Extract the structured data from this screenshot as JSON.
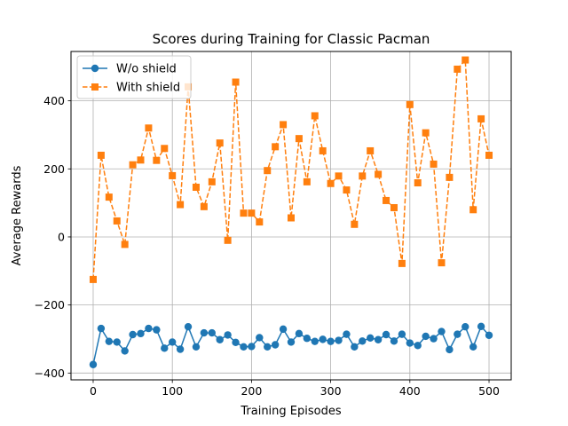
{
  "chart_data": {
    "type": "line",
    "title": "Scores during Training for Classic Pacman",
    "xlabel": "Training Episodes",
    "ylabel": "Average Rewards",
    "xlim": [
      -28,
      528
    ],
    "ylim": [
      -420,
      545
    ],
    "xticks": [
      0,
      100,
      200,
      300,
      400,
      500
    ],
    "yticks": [
      -400,
      -200,
      0,
      200,
      400
    ],
    "grid": true,
    "legend_position": "top-left",
    "x": [
      0,
      10,
      20,
      30,
      40,
      50,
      60,
      70,
      80,
      90,
      100,
      110,
      120,
      130,
      140,
      150,
      160,
      170,
      180,
      190,
      200,
      210,
      220,
      230,
      240,
      250,
      260,
      270,
      280,
      290,
      300,
      310,
      320,
      330,
      340,
      350,
      360,
      370,
      380,
      390,
      400,
      410,
      420,
      430,
      440,
      450,
      460,
      470,
      480,
      490,
      500
    ],
    "series": [
      {
        "name": "W/o shield",
        "color": "#1f77b4",
        "marker": "circle",
        "linestyle": "solid",
        "values": [
          -375,
          -269,
          -307,
          -309,
          -335,
          -287,
          -284,
          -269,
          -273,
          -327,
          -309,
          -330,
          -264,
          -323,
          -282,
          -282,
          -302,
          -288,
          -310,
          -323,
          -322,
          -296,
          -323,
          -317,
          -271,
          -309,
          -284,
          -298,
          -307,
          -301,
          -307,
          -304,
          -286,
          -323,
          -306,
          -297,
          -302,
          -287,
          -306,
          -286,
          -312,
          -319,
          -292,
          -299,
          -278,
          -331,
          -286,
          -264,
          -323,
          -263,
          -289
        ]
      },
      {
        "name": "With shield",
        "color": "#ff7f0e",
        "marker": "square",
        "linestyle": "dashed",
        "values": [
          -125,
          240,
          117,
          47,
          -22,
          212,
          226,
          320,
          225,
          260,
          180,
          95,
          441,
          146,
          89,
          162,
          276,
          -10,
          455,
          70,
          70,
          44,
          195,
          265,
          330,
          56,
          289,
          162,
          356,
          253,
          157,
          179,
          138,
          37,
          179,
          253,
          184,
          107,
          86,
          -78,
          389,
          159,
          306,
          214,
          -76,
          175,
          493,
          520,
          80,
          347,
          240
        ]
      }
    ]
  }
}
